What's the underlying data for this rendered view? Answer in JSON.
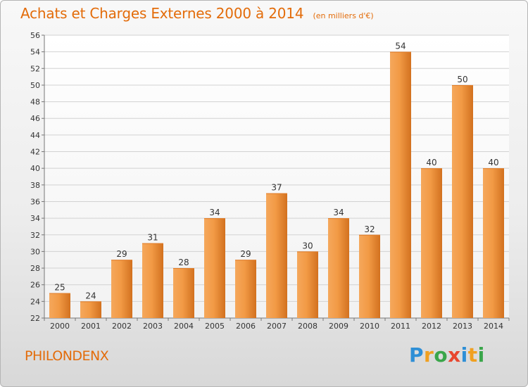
{
  "title": "Achats et Charges Externes 2000 à 2014",
  "unit": "(en milliers d'€)",
  "commune": "PHILONDENX",
  "logo": "Proxiti",
  "colors": {
    "title": "#e36c0a",
    "bar_light": "#f7a65a",
    "bar_dark": "#d2711f",
    "grid": "#d0d0d0",
    "axis_text": "#333333"
  },
  "chart_data": {
    "type": "bar",
    "categories": [
      "2000",
      "2001",
      "2002",
      "2003",
      "2004",
      "2005",
      "2006",
      "2007",
      "2008",
      "2009",
      "2010",
      "2011",
      "2012",
      "2013",
      "2014"
    ],
    "values": [
      25,
      24,
      29,
      31,
      28,
      34,
      29,
      37,
      30,
      34,
      32,
      54,
      40,
      50,
      40
    ],
    "ylim": [
      22,
      56
    ],
    "yticks": [
      22,
      24,
      26,
      28,
      30,
      32,
      34,
      36,
      38,
      40,
      42,
      44,
      46,
      48,
      50,
      52,
      54,
      56
    ],
    "grid": true,
    "data_labels": true
  }
}
